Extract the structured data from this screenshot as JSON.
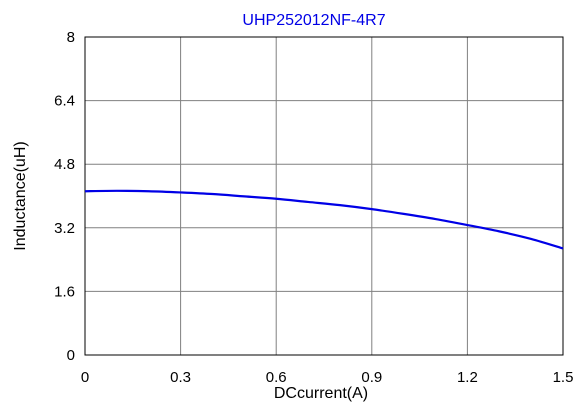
{
  "chart_data": {
    "type": "line",
    "title": "UHP252012NF-4R7",
    "xlabel": "DCcurrent(A)",
    "ylabel": "Inductance(uH)",
    "xlim": [
      0,
      1.5
    ],
    "ylim": [
      0,
      8
    ],
    "x_ticks": [
      "0",
      "0.3",
      "0.6",
      "0.9",
      "1.2",
      "1.5"
    ],
    "y_ticks": [
      "0",
      "1.6",
      "3.2",
      "4.8",
      "6.4",
      "8"
    ],
    "grid": true,
    "legend": "none",
    "colors": {
      "series": "#0000e6",
      "title": "#0000e6",
      "grid": "#808080",
      "axis": "#000000"
    },
    "series": [
      {
        "x": [
          0,
          0.1,
          0.2,
          0.3,
          0.4,
          0.5,
          0.6,
          0.7,
          0.8,
          0.9,
          1.0,
          1.1,
          1.2,
          1.3,
          1.4,
          1.5
        ],
        "values": [
          4.12,
          4.13,
          4.12,
          4.09,
          4.05,
          3.99,
          3.93,
          3.85,
          3.77,
          3.67,
          3.55,
          3.42,
          3.27,
          3.11,
          2.92,
          2.68
        ]
      }
    ]
  }
}
